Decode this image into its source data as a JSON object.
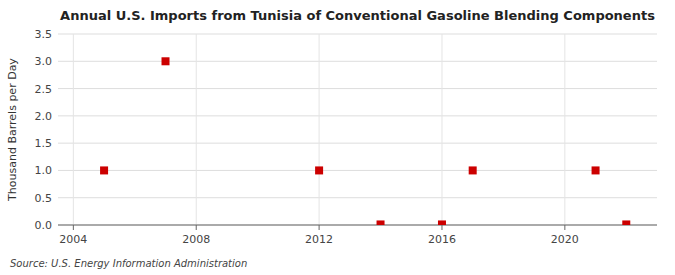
{
  "chart_data": {
    "type": "scatter",
    "title": "Annual U.S. Imports from Tunisia of Conventional Gasoline Blending Components",
    "y_label": "Thousand Barrels per Day",
    "source": "Source: U.S. Energy Information Administration",
    "x": [
      2005,
      2007,
      2012,
      2014,
      2016,
      2017,
      2021,
      2022
    ],
    "values": [
      1.0,
      3.0,
      1.0,
      0.01,
      0.01,
      1.0,
      1.0,
      0.01
    ],
    "color": "#cc0000",
    "marker": "square",
    "xlim": [
      2003.5,
      2023
    ],
    "ylim": [
      0.0,
      3.5
    ],
    "xticks": [
      2004,
      2008,
      2012,
      2016,
      2020
    ],
    "yticks": [
      {
        "value": 0.0,
        "label": "0.0"
      },
      0.5,
      {
        "value": 1.0,
        "label": "1.0"
      },
      1.5,
      {
        "value": 2.0,
        "label": "2.0"
      },
      2.5,
      {
        "value": 3.0,
        "label": "3.0"
      },
      3.5
    ],
    "grid": true
  }
}
